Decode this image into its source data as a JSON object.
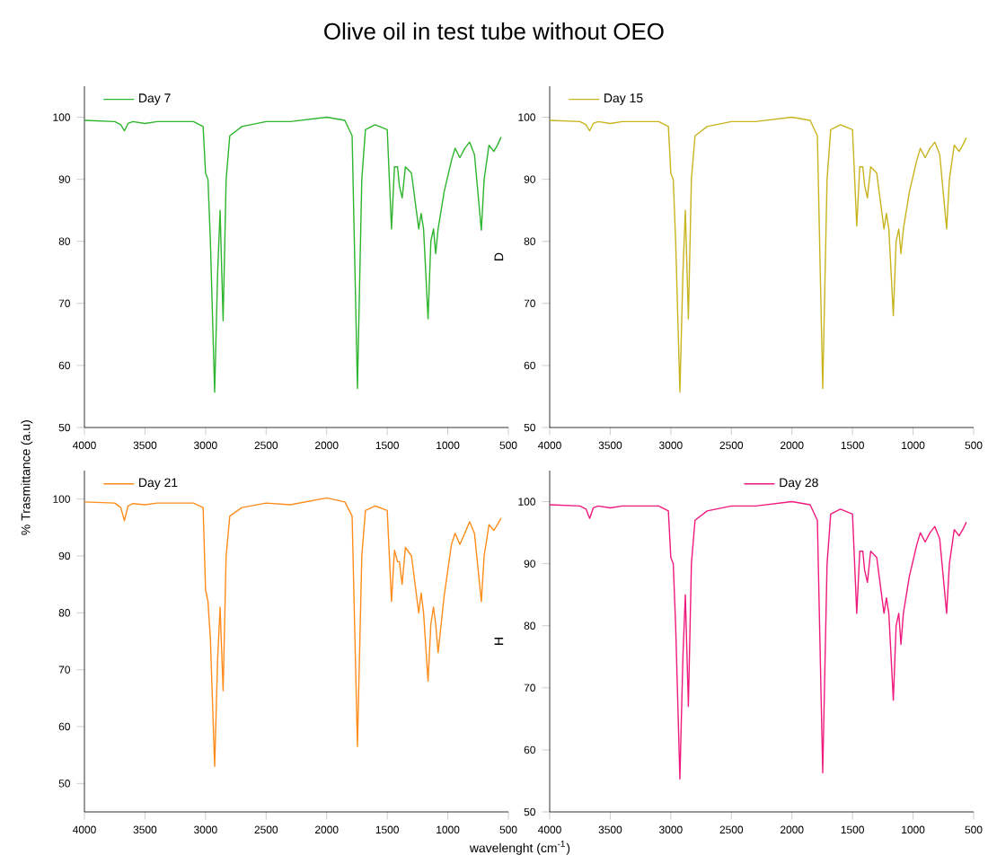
{
  "chart_data": [
    {
      "type": "line",
      "title": "Olive oil in test tube without OEO",
      "x": [
        4000,
        3750,
        3700,
        3670,
        3640,
        3600,
        3500,
        3400,
        3100,
        3020,
        3000,
        2980,
        2960,
        2925,
        2900,
        2880,
        2855,
        2830,
        2800,
        2700,
        2500,
        2300,
        2000,
        1850,
        1790,
        1746,
        1710,
        1680,
        1600,
        1500,
        1465,
        1440,
        1415,
        1400,
        1377,
        1350,
        1300,
        1240,
        1220,
        1200,
        1163,
        1140,
        1118,
        1100,
        1080,
        1030,
        970,
        940,
        900,
        860,
        820,
        780,
        723,
        700,
        660,
        620,
        590,
        560
      ],
      "series": [
        {
          "name": "Day 7",
          "color": "#2db52d",
          "values": [
            99.5,
            99.3,
            98.8,
            97.8,
            99.0,
            99.3,
            99.0,
            99.3,
            99.3,
            98.5,
            91,
            90,
            80,
            55.7,
            75,
            85,
            67.2,
            90,
            97,
            98.5,
            99.3,
            99.3,
            100,
            99.5,
            97,
            56.3,
            90,
            98,
            98.8,
            98,
            82,
            92,
            92,
            89,
            87,
            92,
            91,
            82,
            84.5,
            82,
            67.5,
            80,
            82,
            78,
            82,
            88,
            93,
            95,
            93.5,
            95,
            96,
            94,
            81.8,
            90,
            95.5,
            94.5,
            95.5,
            96.8
          ]
        }
      ],
      "xlim": [
        4000,
        500
      ],
      "ylim": [
        50,
        105
      ],
      "xticks": [
        4000,
        3500,
        3000,
        2500,
        2000,
        1500,
        1000,
        500
      ],
      "yticks": [
        50,
        60,
        70,
        80,
        90,
        100
      ],
      "legend": "top left"
    },
    {
      "type": "line",
      "ylabel": "D",
      "x": [
        4000,
        3750,
        3700,
        3670,
        3640,
        3600,
        3500,
        3400,
        3100,
        3020,
        3000,
        2980,
        2960,
        2925,
        2900,
        2880,
        2855,
        2830,
        2800,
        2700,
        2500,
        2300,
        2000,
        1850,
        1790,
        1746,
        1710,
        1680,
        1600,
        1500,
        1465,
        1440,
        1415,
        1400,
        1377,
        1350,
        1300,
        1240,
        1220,
        1200,
        1163,
        1140,
        1118,
        1100,
        1080,
        1030,
        970,
        940,
        900,
        860,
        820,
        780,
        723,
        700,
        660,
        620,
        590,
        560
      ],
      "series": [
        {
          "name": "Day 15",
          "color": "#c8b41e",
          "values": [
            99.5,
            99.3,
            98.8,
            97.8,
            99.0,
            99.3,
            99.0,
            99.3,
            99.3,
            98.5,
            91,
            90,
            80,
            55.7,
            75,
            85,
            67.5,
            90,
            97,
            98.5,
            99.3,
            99.3,
            100,
            99.5,
            97,
            56.3,
            90,
            98,
            98.8,
            98,
            82.5,
            92,
            92,
            89,
            87,
            92,
            91,
            82,
            84.5,
            82,
            68,
            80,
            82,
            78,
            82,
            88,
            93,
            95,
            93.5,
            95,
            96,
            94,
            82,
            90,
            95.5,
            94.5,
            95.5,
            96.7
          ]
        }
      ],
      "xlim": [
        4000,
        500
      ],
      "ylim": [
        50,
        105
      ],
      "xticks": [
        4000,
        3500,
        3000,
        2500,
        2000,
        1500,
        1000,
        500
      ],
      "yticks": [
        50,
        60,
        70,
        80,
        90,
        100
      ],
      "legend": "top left"
    },
    {
      "type": "line",
      "ylabel": "% Trasmittance (a.u)",
      "x": [
        4000,
        3750,
        3700,
        3670,
        3640,
        3600,
        3500,
        3400,
        3100,
        3020,
        3000,
        2980,
        2960,
        2925,
        2900,
        2880,
        2855,
        2830,
        2800,
        2700,
        2500,
        2300,
        2000,
        1850,
        1790,
        1746,
        1710,
        1680,
        1600,
        1500,
        1465,
        1440,
        1415,
        1400,
        1377,
        1350,
        1300,
        1240,
        1220,
        1200,
        1163,
        1140,
        1118,
        1100,
        1080,
        1030,
        970,
        940,
        900,
        860,
        820,
        780,
        723,
        700,
        660,
        620,
        590,
        560
      ],
      "series": [
        {
          "name": "Day 21",
          "color": "#ff8c1a",
          "values": [
            99.5,
            99.3,
            98.5,
            96.2,
            98.8,
            99.2,
            99.0,
            99.3,
            99.3,
            98.5,
            84,
            82,
            75.5,
            53,
            72,
            81,
            66.3,
            90,
            97,
            98.5,
            99.3,
            99,
            100.2,
            99.5,
            97,
            56.5,
            90,
            98,
            98.8,
            98,
            82,
            91,
            89,
            89,
            85,
            91.5,
            90,
            80,
            83.5,
            80,
            68,
            78,
            81,
            78,
            73,
            83,
            92,
            94,
            92,
            94,
            96,
            94,
            82,
            90,
            95.5,
            94.5,
            95.5,
            96.6
          ]
        }
      ],
      "xlim": [
        4000,
        500
      ],
      "ylim": [
        45,
        105
      ],
      "xticks": [
        4000,
        3500,
        3000,
        2500,
        2000,
        1500,
        1000,
        500
      ],
      "yticks": [
        50,
        60,
        70,
        80,
        90,
        100
      ],
      "legend": "top left"
    },
    {
      "type": "line",
      "ylabel": "H",
      "xlabel": "wavelenght (cm$^{-1}$)",
      "x": [
        4000,
        3750,
        3700,
        3670,
        3640,
        3600,
        3500,
        3400,
        3100,
        3020,
        3000,
        2980,
        2960,
        2925,
        2900,
        2880,
        2855,
        2830,
        2800,
        2700,
        2500,
        2300,
        2000,
        1850,
        1790,
        1746,
        1710,
        1680,
        1600,
        1500,
        1465,
        1440,
        1415,
        1400,
        1377,
        1350,
        1300,
        1240,
        1220,
        1200,
        1163,
        1140,
        1118,
        1100,
        1080,
        1030,
        970,
        940,
        900,
        860,
        820,
        780,
        723,
        700,
        660,
        620,
        590,
        560
      ],
      "series": [
        {
          "name": "Day 28",
          "color": "#f0197d",
          "values": [
            99.5,
            99.3,
            98.8,
            97.3,
            99.0,
            99.3,
            99.0,
            99.3,
            99.3,
            98.5,
            91,
            90,
            80,
            55.3,
            75,
            85,
            67,
            90,
            97,
            98.5,
            99.3,
            99.3,
            100,
            99.5,
            97,
            56.3,
            90,
            98,
            98.8,
            98,
            82,
            92,
            92,
            89,
            87,
            92,
            91,
            82,
            84.5,
            82,
            68,
            80,
            82,
            77,
            82,
            88,
            93,
            95,
            93.5,
            95,
            96,
            94,
            82,
            90,
            95.5,
            94.5,
            95.5,
            96.7
          ]
        }
      ],
      "xlim": [
        4000,
        500
      ],
      "ylim": [
        50,
        105
      ],
      "xticks": [
        4000,
        3500,
        3000,
        2500,
        2000,
        1500,
        1000,
        500
      ],
      "yticks": [
        50,
        60,
        70,
        80,
        90,
        100
      ],
      "legend": "top"
    }
  ]
}
